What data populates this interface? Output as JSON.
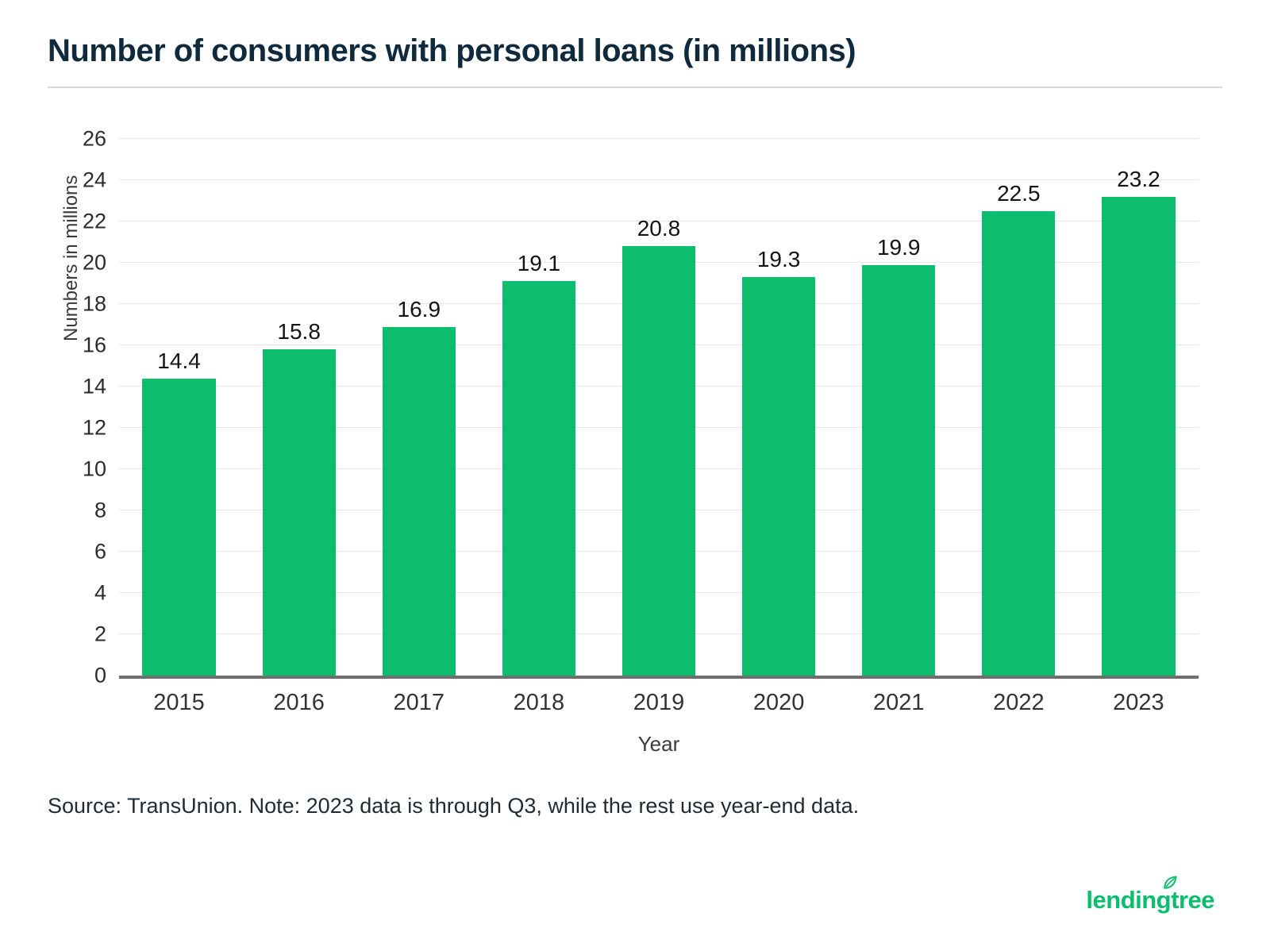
{
  "chart_data": {
    "type": "bar",
    "title": "Number of consumers with personal loans (in millions)",
    "categories": [
      "2015",
      "2016",
      "2017",
      "2018",
      "2019",
      "2020",
      "2021",
      "2022",
      "2023"
    ],
    "values": [
      14.4,
      15.8,
      16.9,
      19.1,
      20.8,
      19.3,
      19.9,
      22.5,
      23.2
    ],
    "xlabel": "Year",
    "ylabel": "Numbers in millions",
    "ylim": [
      0,
      26
    ],
    "ytick_step": 2,
    "grid": true,
    "legend": "none",
    "bar_color": "#0dbd6e"
  },
  "source_note": "Source: TransUnion. Note: 2023 data is through Q3, while the rest use year-end data.",
  "logo": {
    "brand": "lendingtree"
  },
  "colors": {
    "accent_green": "#0dbd6e",
    "title_navy": "#0e2a3c",
    "gridline": "#e6e6e6",
    "axis_line": "#6f6f6f"
  }
}
